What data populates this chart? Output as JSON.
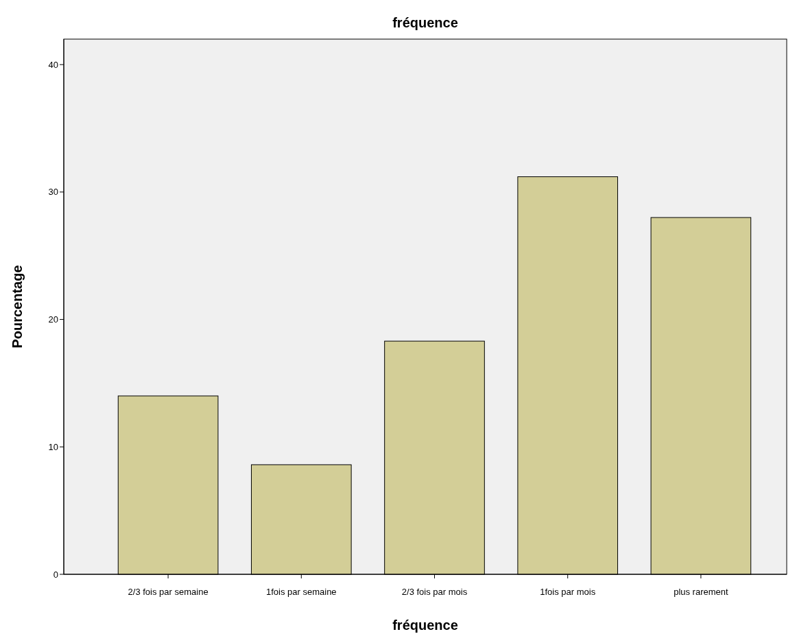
{
  "chart_data": {
    "type": "bar",
    "title": "fréquence",
    "xlabel": "fréquence",
    "ylabel": "Pourcentage",
    "categories": [
      "2/3 fois par semaine",
      "1fois par semaine",
      "2/3 fois par mois",
      "1fois par mois",
      "plus rarement"
    ],
    "values": [
      14.0,
      8.6,
      18.3,
      31.2,
      28.0
    ],
    "color": "#d3ce97",
    "ylim": [
      0,
      42
    ],
    "yticks": [
      0,
      10,
      20,
      30,
      40
    ],
    "grid": false
  }
}
